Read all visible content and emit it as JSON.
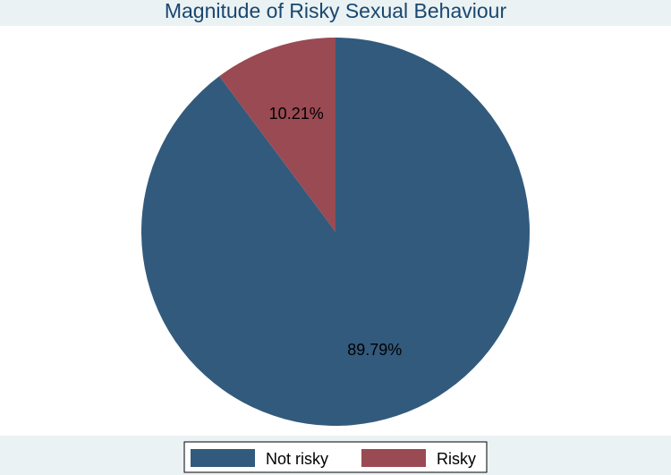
{
  "chart_data": {
    "type": "pie",
    "title": "Magnitude of Risky Sexual Behaviour",
    "slices": [
      {
        "label": "Not risky",
        "value": 89.79,
        "display": "89.79%",
        "color": "#325a7d"
      },
      {
        "label": "Risky",
        "value": 10.21,
        "display": "10.21%",
        "color": "#9a4a52"
      }
    ],
    "legend": {
      "position": "bottom",
      "entries": [
        "Not risky",
        "Risky"
      ]
    },
    "colors": {
      "background": "#eaf2f3",
      "plot_background": "#ffffff",
      "title": "#1a476f"
    }
  }
}
